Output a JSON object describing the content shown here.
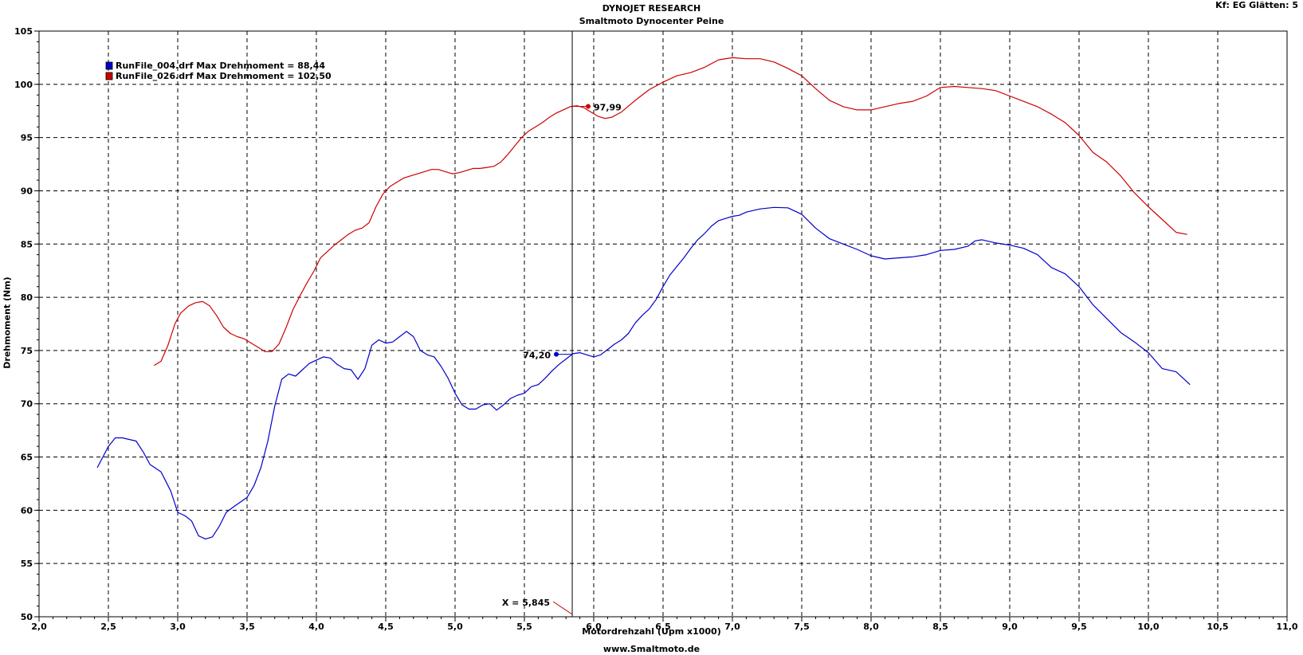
{
  "header": {
    "title": "DYNOJET RESEARCH",
    "subtitle": "Smaltmoto Dynocenter Peine",
    "right_info": "Kf: EG  Glätten: 5",
    "footer": "www.Smaltmoto.de"
  },
  "chart_data": {
    "type": "line",
    "xlabel": "Motordrehzahl (Upm x1000)",
    "ylabel": "Drehmoment (Nm)",
    "xlim": [
      2.0,
      11.0
    ],
    "ylim": [
      50,
      105
    ],
    "x_ticks": [
      "2,0",
      "2,5",
      "3,0",
      "3,5",
      "4,0",
      "4,5",
      "5,0",
      "5,5",
      "6,0",
      "6,5",
      "7,0",
      "7,5",
      "8,0",
      "8,5",
      "9,0",
      "9,5",
      "10,0",
      "10,5",
      "11,0"
    ],
    "y_ticks": [
      "50",
      "55",
      "60",
      "65",
      "70",
      "75",
      "80",
      "85",
      "90",
      "95",
      "100",
      "105"
    ],
    "grid": true,
    "cursor": {
      "x": 5.845,
      "label": "X = 5,845"
    },
    "series": [
      {
        "name": "RunFile_004.drf Max Drehmoment = 88,44",
        "color": "#0000cc",
        "cursor_value": "74,20",
        "x": [
          2.42,
          2.5,
          2.55,
          2.6,
          2.7,
          2.75,
          2.8,
          2.88,
          2.95,
          3.0,
          3.05,
          3.1,
          3.15,
          3.2,
          3.25,
          3.3,
          3.35,
          3.4,
          3.5,
          3.55,
          3.6,
          3.65,
          3.7,
          3.75,
          3.8,
          3.85,
          3.9,
          3.95,
          4.0,
          4.05,
          4.1,
          4.15,
          4.2,
          4.25,
          4.3,
          4.35,
          4.4,
          4.45,
          4.5,
          4.55,
          4.6,
          4.65,
          4.7,
          4.75,
          4.8,
          4.85,
          4.9,
          4.95,
          5.0,
          5.05,
          5.1,
          5.15,
          5.2,
          5.25,
          5.3,
          5.35,
          5.4,
          5.45,
          5.5,
          5.55,
          5.6,
          5.65,
          5.7,
          5.75,
          5.8,
          5.85,
          5.9,
          5.95,
          6.0,
          6.05,
          6.1,
          6.15,
          6.2,
          6.25,
          6.3,
          6.35,
          6.4,
          6.45,
          6.5,
          6.55,
          6.6,
          6.65,
          6.7,
          6.75,
          6.8,
          6.85,
          6.9,
          6.95,
          7.0,
          7.05,
          7.1,
          7.2,
          7.3,
          7.4,
          7.5,
          7.6,
          7.7,
          7.8,
          7.9,
          8.0,
          8.1,
          8.2,
          8.3,
          8.4,
          8.5,
          8.6,
          8.7,
          8.75,
          8.8,
          8.9,
          9.0,
          9.1,
          9.2,
          9.3,
          9.4,
          9.5,
          9.6,
          9.7,
          9.8,
          9.9,
          10.0,
          10.1,
          10.2,
          10.3
        ],
        "y": [
          64.0,
          66.0,
          66.8,
          66.8,
          66.5,
          65.5,
          64.3,
          63.6,
          61.8,
          59.8,
          59.5,
          59.0,
          57.6,
          57.3,
          57.5,
          58.5,
          59.8,
          60.3,
          61.2,
          62.3,
          64.0,
          66.5,
          69.8,
          72.3,
          72.8,
          72.6,
          73.2,
          73.8,
          74.1,
          74.4,
          74.3,
          73.7,
          73.3,
          73.2,
          72.3,
          73.3,
          75.5,
          76.0,
          75.7,
          75.8,
          76.3,
          76.8,
          76.3,
          75.0,
          74.6,
          74.4,
          73.5,
          72.4,
          71.0,
          69.9,
          69.5,
          69.5,
          69.9,
          70.0,
          69.4,
          69.9,
          70.5,
          70.8,
          71.0,
          71.6,
          71.8,
          72.4,
          73.1,
          73.7,
          74.2,
          74.7,
          74.8,
          74.6,
          74.4,
          74.6,
          75.1,
          75.6,
          76.0,
          76.6,
          77.6,
          78.3,
          78.9,
          79.8,
          81.0,
          82.1,
          82.9,
          83.7,
          84.6,
          85.4,
          86.0,
          86.7,
          87.2,
          87.4,
          87.6,
          87.7,
          88.0,
          88.3,
          88.44,
          88.4,
          87.8,
          86.5,
          85.5,
          85.0,
          84.5,
          83.9,
          83.6,
          83.7,
          83.8,
          84.0,
          84.4,
          84.5,
          84.8,
          85.3,
          85.4,
          85.1,
          84.9,
          84.6,
          84.0,
          82.8,
          82.2,
          81.0,
          79.3,
          78.0,
          76.7,
          75.8,
          74.8,
          73.3,
          73.0,
          71.8
        ]
      },
      {
        "name": "RunFile_026.drf Max Drehmoment = 102,50",
        "color": "#cc0000",
        "cursor_value": "97,99",
        "x": [
          2.83,
          2.88,
          2.93,
          2.98,
          3.02,
          3.08,
          3.13,
          3.18,
          3.23,
          3.28,
          3.33,
          3.38,
          3.43,
          3.48,
          3.53,
          3.58,
          3.63,
          3.68,
          3.73,
          3.78,
          3.83,
          3.88,
          3.93,
          3.98,
          4.03,
          4.08,
          4.13,
          4.18,
          4.23,
          4.28,
          4.33,
          4.38,
          4.43,
          4.48,
          4.53,
          4.58,
          4.63,
          4.68,
          4.73,
          4.78,
          4.83,
          4.88,
          4.93,
          4.98,
          5.03,
          5.08,
          5.13,
          5.18,
          5.23,
          5.28,
          5.33,
          5.38,
          5.43,
          5.48,
          5.53,
          5.58,
          5.63,
          5.68,
          5.73,
          5.78,
          5.83,
          5.88,
          5.93,
          5.98,
          6.03,
          6.08,
          6.13,
          6.2,
          6.3,
          6.4,
          6.5,
          6.6,
          6.7,
          6.8,
          6.9,
          7.0,
          7.1,
          7.2,
          7.3,
          7.4,
          7.5,
          7.6,
          7.7,
          7.8,
          7.9,
          8.0,
          8.1,
          8.2,
          8.3,
          8.4,
          8.5,
          8.6,
          8.7,
          8.8,
          8.9,
          9.0,
          9.1,
          9.2,
          9.3,
          9.4,
          9.5,
          9.6,
          9.7,
          9.8,
          9.9,
          10.0,
          10.1,
          10.2,
          10.28
        ],
        "y": [
          73.6,
          74.0,
          75.5,
          77.5,
          78.5,
          79.2,
          79.5,
          79.6,
          79.2,
          78.3,
          77.2,
          76.6,
          76.3,
          76.1,
          75.7,
          75.3,
          74.9,
          74.9,
          75.6,
          77.1,
          78.8,
          80.1,
          81.3,
          82.4,
          83.7,
          84.3,
          84.9,
          85.4,
          85.9,
          86.3,
          86.5,
          87.0,
          88.5,
          89.7,
          90.4,
          90.8,
          91.2,
          91.4,
          91.6,
          91.8,
          92.0,
          92.0,
          91.8,
          91.6,
          91.7,
          91.9,
          92.1,
          92.1,
          92.2,
          92.3,
          92.7,
          93.4,
          94.2,
          95.0,
          95.6,
          96.0,
          96.4,
          96.9,
          97.3,
          97.6,
          97.9,
          97.99,
          97.8,
          97.4,
          97.0,
          96.8,
          96.9,
          97.4,
          98.5,
          99.5,
          100.2,
          100.8,
          101.1,
          101.6,
          102.3,
          102.5,
          102.4,
          102.4,
          102.1,
          101.5,
          100.8,
          99.6,
          98.5,
          97.9,
          97.6,
          97.6,
          97.9,
          98.2,
          98.4,
          98.9,
          99.7,
          99.8,
          99.7,
          99.6,
          99.4,
          98.9,
          98.4,
          97.9,
          97.2,
          96.4,
          95.2,
          93.6,
          92.7,
          91.4,
          89.8,
          88.5,
          87.3,
          86.1,
          85.9
        ]
      }
    ]
  }
}
